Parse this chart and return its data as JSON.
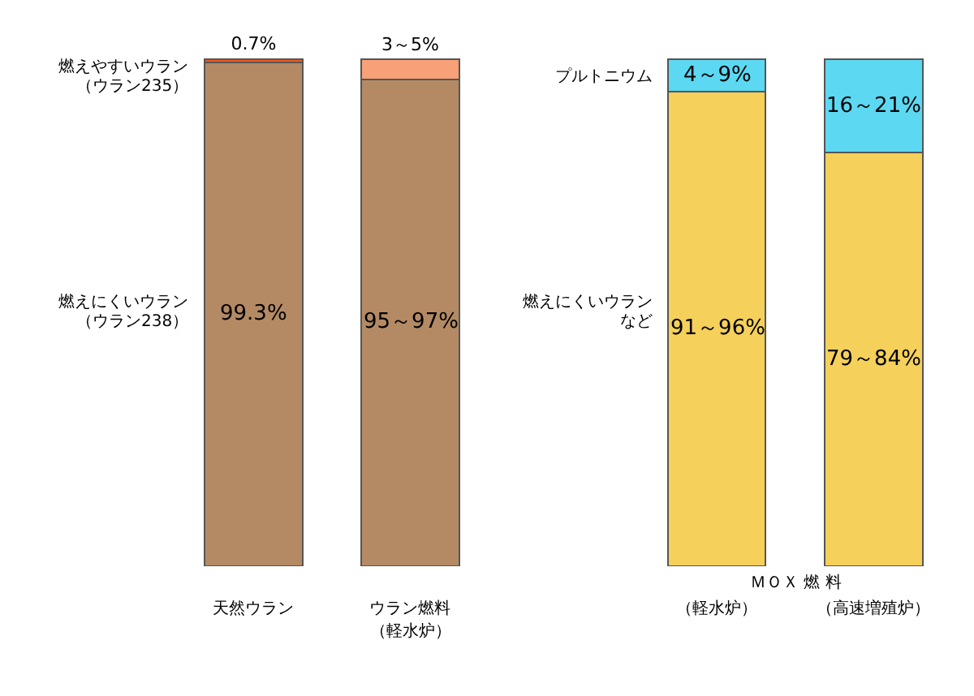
{
  "chart_data": {
    "type": "bar",
    "stacked": true,
    "categories": [
      "天然ウラン",
      "ウラン燃料",
      "（軽水炉）",
      "（高速増殖炉）"
    ],
    "series": [
      {
        "colors": [
          "#b48a64",
          "#b48a64",
          "#f5d05a",
          "#f5d05a"
        ],
        "values": [
          99.3,
          96,
          93.5,
          81.5
        ],
        "value_labels": [
          "99.3%",
          null,
          null,
          null
        ]
      },
      {
        "colors": [
          "#f05a1e",
          "#f8a078",
          "#5cd8f2",
          "#5cd8f2"
        ],
        "values": [
          0.7,
          4,
          6.5,
          18.5
        ],
        "value_labels": [
          "0.7%",
          null,
          null,
          null
        ]
      }
    ],
    "annotations": [
      "燃えやすいウラン",
      "（ウラン235）",
      "燃えにくいウラン",
      "（ウラン238）",
      "プルトニウム",
      "燃えにくいウラン",
      "など",
      "（軽水炉）",
      "ＭＯＸ 燃 料",
      "95～97%",
      "3～5%",
      "91～96%",
      "4～9%",
      "79～84%",
      "16～21%"
    ],
    "grid": false
  }
}
